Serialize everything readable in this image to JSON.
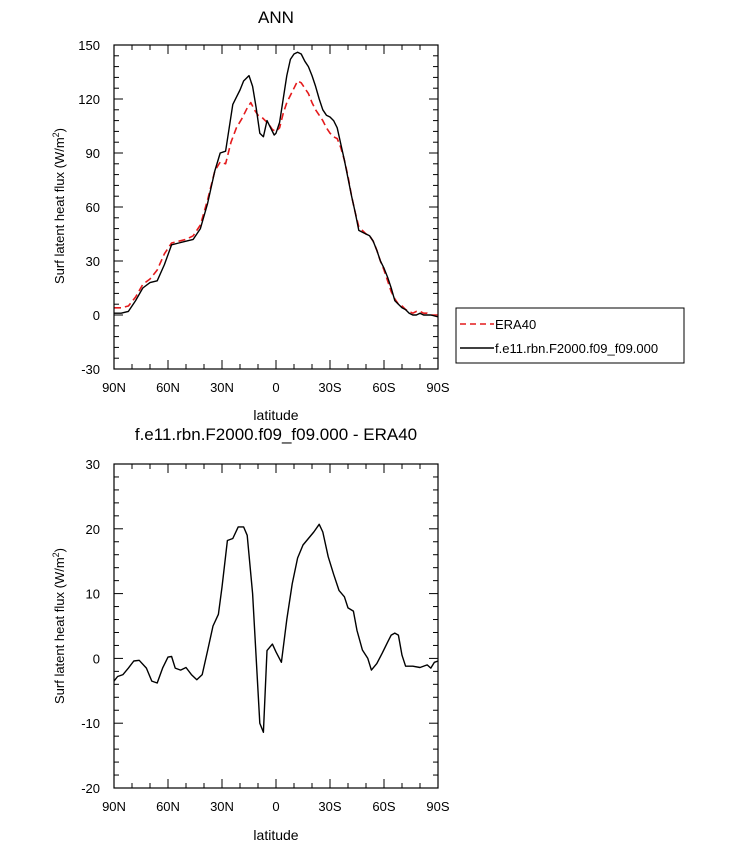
{
  "chart_data": [
    {
      "type": "line",
      "title": "ANN",
      "xlabel": "latitude",
      "ylabel": "Surf latent heat flux (W/m",
      "ylabel_sup": "2",
      "ylabel_close": ")",
      "xlim": [
        90,
        -90
      ],
      "ylim": [
        -30,
        150
      ],
      "x_tick_values": [
        90,
        60,
        30,
        0,
        -30,
        -60,
        -90
      ],
      "x_tick_labels": [
        "90N",
        "60N",
        "30N",
        "0",
        "30S",
        "60S",
        "90S"
      ],
      "y_ticks": [
        -30,
        0,
        30,
        60,
        90,
        120,
        150
      ],
      "legend": {
        "placement": "right",
        "entries": [
          "ERA40",
          "f.e11.rbn.F2000.f09_f09.000"
        ]
      },
      "series": [
        {
          "name": "ERA40",
          "color": "#e41a1c",
          "dash": true,
          "points": [
            [
              90,
              4
            ],
            [
              86,
              4
            ],
            [
              82,
              5
            ],
            [
              78,
              10
            ],
            [
              74,
              17
            ],
            [
              70,
              20
            ],
            [
              66,
              25
            ],
            [
              62,
              34
            ],
            [
              58,
              40
            ],
            [
              54,
              41
            ],
            [
              50,
              42
            ],
            [
              46,
              44
            ],
            [
              42,
              50
            ],
            [
              38,
              64
            ],
            [
              34,
              80
            ],
            [
              31,
              85
            ],
            [
              28,
              84
            ],
            [
              25,
              96
            ],
            [
              22,
              104
            ],
            [
              19,
              109
            ],
            [
              16,
              115
            ],
            [
              14,
              118
            ],
            [
              12,
              114
            ],
            [
              10,
              111
            ],
            [
              8,
              110
            ],
            [
              6,
              108
            ],
            [
              4,
              106
            ],
            [
              2,
              103
            ],
            [
              0,
              102
            ],
            [
              -2,
              104
            ],
            [
              -4,
              112
            ],
            [
              -6,
              118
            ],
            [
              -8,
              122
            ],
            [
              -10,
              126
            ],
            [
              -12,
              130
            ],
            [
              -14,
              129
            ],
            [
              -16,
              126
            ],
            [
              -18,
              123
            ],
            [
              -20,
              118
            ],
            [
              -22,
              114
            ],
            [
              -24,
              111
            ],
            [
              -26,
              108
            ],
            [
              -28,
              104
            ],
            [
              -30,
              101
            ],
            [
              -32,
              99
            ],
            [
              -34,
              98
            ],
            [
              -36,
              93
            ],
            [
              -38,
              86
            ],
            [
              -40,
              77
            ],
            [
              -42,
              66
            ],
            [
              -44,
              57
            ],
            [
              -46,
              49
            ],
            [
              -48,
              47
            ],
            [
              -50,
              45
            ],
            [
              -52,
              44
            ],
            [
              -54,
              41
            ],
            [
              -56,
              36
            ],
            [
              -58,
              30
            ],
            [
              -60,
              25
            ],
            [
              -62,
              19
            ],
            [
              -64,
              13
            ],
            [
              -66,
              9
            ],
            [
              -68,
              6
            ],
            [
              -70,
              5
            ],
            [
              -72,
              3
            ],
            [
              -74,
              2
            ],
            [
              -76,
              1
            ],
            [
              -78,
              2
            ],
            [
              -80,
              2
            ],
            [
              -82,
              1
            ],
            [
              -84,
              1
            ],
            [
              -86,
              0
            ],
            [
              -90,
              0
            ]
          ]
        },
        {
          "name": "f.e11.rbn.F2000.f09_f09.000",
          "color": "#000000",
          "dash": false,
          "points": [
            [
              90,
              1
            ],
            [
              86,
              1
            ],
            [
              82,
              2
            ],
            [
              78,
              8
            ],
            [
              74,
              15
            ],
            [
              70,
              18
            ],
            [
              66,
              19
            ],
            [
              62,
              28
            ],
            [
              58,
              39
            ],
            [
              54,
              40
            ],
            [
              50,
              41
            ],
            [
              46,
              42
            ],
            [
              42,
              48
            ],
            [
              38,
              62
            ],
            [
              34,
              80
            ],
            [
              31,
              90
            ],
            [
              28,
              91
            ],
            [
              26,
              104
            ],
            [
              24,
              117
            ],
            [
              22,
              121
            ],
            [
              20,
              125
            ],
            [
              18,
              130
            ],
            [
              15,
              133
            ],
            [
              13,
              127
            ],
            [
              11,
              115
            ],
            [
              9,
              101
            ],
            [
              7,
              99
            ],
            [
              5,
              108
            ],
            [
              3,
              104
            ],
            [
              1,
              100
            ],
            [
              0,
              101
            ],
            [
              -2,
              107
            ],
            [
              -4,
              120
            ],
            [
              -6,
              133
            ],
            [
              -8,
              142
            ],
            [
              -10,
              145
            ],
            [
              -12,
              146
            ],
            [
              -14,
              145
            ],
            [
              -16,
              141
            ],
            [
              -18,
              138
            ],
            [
              -20,
              133
            ],
            [
              -22,
              127
            ],
            [
              -24,
              120
            ],
            [
              -26,
              114
            ],
            [
              -28,
              111
            ],
            [
              -30,
              110
            ],
            [
              -32,
              108
            ],
            [
              -34,
              104
            ],
            [
              -36,
              95
            ],
            [
              -38,
              86
            ],
            [
              -40,
              76
            ],
            [
              -42,
              66
            ],
            [
              -44,
              57
            ],
            [
              -46,
              47
            ],
            [
              -48,
              46
            ],
            [
              -50,
              45
            ],
            [
              -52,
              44
            ],
            [
              -54,
              41
            ],
            [
              -56,
              36
            ],
            [
              -58,
              30
            ],
            [
              -60,
              26
            ],
            [
              -62,
              21
            ],
            [
              -64,
              15
            ],
            [
              -66,
              8
            ],
            [
              -68,
              6
            ],
            [
              -70,
              4
            ],
            [
              -72,
              3
            ],
            [
              -74,
              1
            ],
            [
              -76,
              0
            ],
            [
              -78,
              0
            ],
            [
              -80,
              1
            ],
            [
              -82,
              0
            ],
            [
              -84,
              0
            ],
            [
              -86,
              0
            ],
            [
              -90,
              -1
            ]
          ]
        }
      ]
    },
    {
      "type": "line",
      "title": "f.e11.rbn.F2000.f09_f09.000 - ERA40",
      "xlabel": "latitude",
      "ylabel": "Surf latent heat flux (W/m",
      "ylabel_sup": "2",
      "ylabel_close": ")",
      "xlim": [
        90,
        -90
      ],
      "ylim": [
        -20,
        30
      ],
      "x_tick_values": [
        90,
        60,
        30,
        0,
        -30,
        -60,
        -90
      ],
      "x_tick_labels": [
        "90N",
        "60N",
        "30N",
        "0",
        "30S",
        "60S",
        "90S"
      ],
      "y_ticks": [
        -20,
        -10,
        0,
        10,
        20,
        30
      ],
      "series": [
        {
          "color": "#000000",
          "dash": false,
          "points": [
            [
              90,
              -3.5
            ],
            [
              88,
              -2.8
            ],
            [
              85,
              -2.5
            ],
            [
              82,
              -1.5
            ],
            [
              79,
              -0.4
            ],
            [
              76,
              -0.3
            ],
            [
              72,
              -1.5
            ],
            [
              69,
              -3.5
            ],
            [
              66,
              -3.8
            ],
            [
              63,
              -1.5
            ],
            [
              60,
              0.2
            ],
            [
              58,
              0.3
            ],
            [
              56,
              -1.5
            ],
            [
              53,
              -1.8
            ],
            [
              50,
              -1.4
            ],
            [
              47,
              -2.5
            ],
            [
              44,
              -3.3
            ],
            [
              41,
              -2.5
            ],
            [
              38,
              1.2
            ],
            [
              35,
              5
            ],
            [
              32,
              6.8
            ],
            [
              30,
              11
            ],
            [
              27,
              18.2
            ],
            [
              24,
              18.5
            ],
            [
              21,
              20.3
            ],
            [
              18,
              20.3
            ],
            [
              16,
              19
            ],
            [
              13,
              10
            ],
            [
              9,
              -10
            ],
            [
              7,
              -11.4
            ],
            [
              5,
              1.2
            ],
            [
              2,
              2.2
            ],
            [
              0,
              1
            ],
            [
              -3,
              -0.6
            ],
            [
              -6,
              6
            ],
            [
              -9,
              11.5
            ],
            [
              -12,
              15.5
            ],
            [
              -15,
              17.5
            ],
            [
              -18,
              18.5
            ],
            [
              -21,
              19.5
            ],
            [
              -24,
              20.7
            ],
            [
              -26,
              19.5
            ],
            [
              -29,
              15.7
            ],
            [
              -32,
              13
            ],
            [
              -35,
              10.5
            ],
            [
              -38,
              9.5
            ],
            [
              -40,
              7.8
            ],
            [
              -43,
              7.3
            ],
            [
              -45,
              4.3
            ],
            [
              -48,
              1.3
            ],
            [
              -51,
              0
            ],
            [
              -53,
              -1.8
            ],
            [
              -56,
              -0.8
            ],
            [
              -59,
              0.8
            ],
            [
              -62,
              2.5
            ],
            [
              -64,
              3.6
            ],
            [
              -66,
              3.9
            ],
            [
              -68,
              3.6
            ],
            [
              -70,
              0.5
            ],
            [
              -72,
              -1.2
            ],
            [
              -76,
              -1.2
            ],
            [
              -80,
              -1.4
            ],
            [
              -84,
              -1
            ],
            [
              -86,
              -1.5
            ],
            [
              -88,
              -0.6
            ],
            [
              -90,
              -0.4
            ]
          ]
        }
      ]
    }
  ]
}
